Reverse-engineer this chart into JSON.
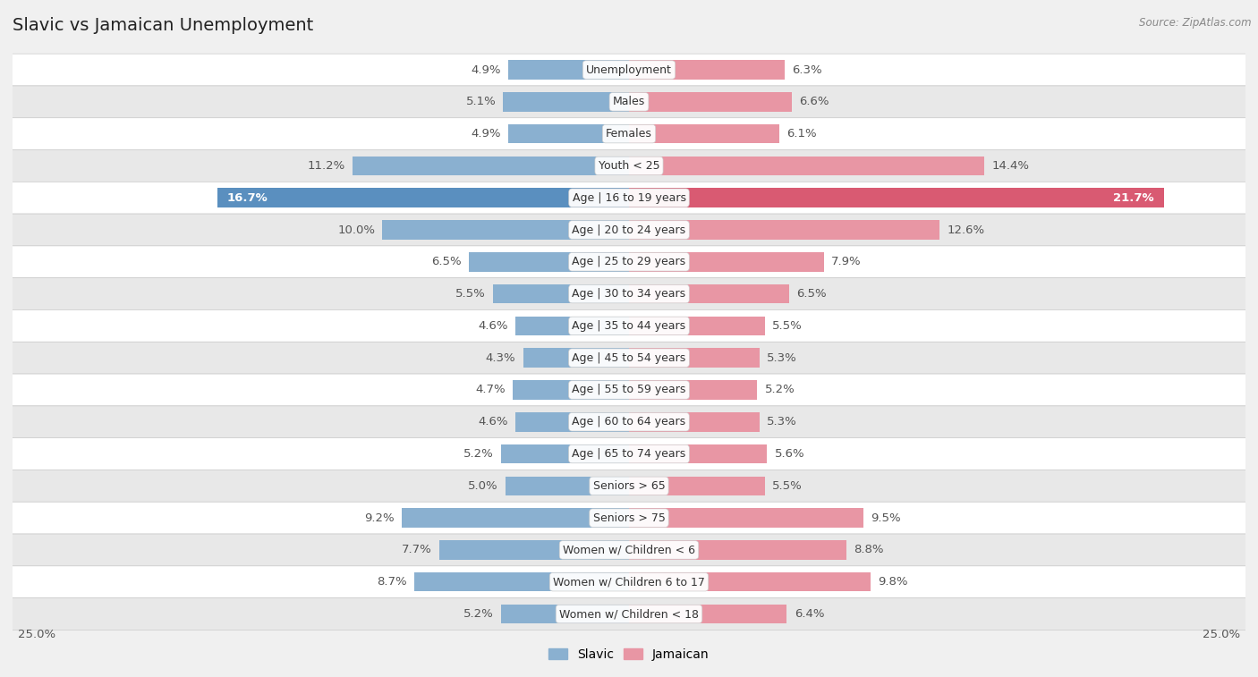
{
  "title": "Slavic vs Jamaican Unemployment",
  "source": "Source: ZipAtlas.com",
  "categories": [
    "Unemployment",
    "Males",
    "Females",
    "Youth < 25",
    "Age | 16 to 19 years",
    "Age | 20 to 24 years",
    "Age | 25 to 29 years",
    "Age | 30 to 34 years",
    "Age | 35 to 44 years",
    "Age | 45 to 54 years",
    "Age | 55 to 59 years",
    "Age | 60 to 64 years",
    "Age | 65 to 74 years",
    "Seniors > 65",
    "Seniors > 75",
    "Women w/ Children < 6",
    "Women w/ Children 6 to 17",
    "Women w/ Children < 18"
  ],
  "slavic": [
    4.9,
    5.1,
    4.9,
    11.2,
    16.7,
    10.0,
    6.5,
    5.5,
    4.6,
    4.3,
    4.7,
    4.6,
    5.2,
    5.0,
    9.2,
    7.7,
    8.7,
    5.2
  ],
  "jamaican": [
    6.3,
    6.6,
    6.1,
    14.4,
    21.7,
    12.6,
    7.9,
    6.5,
    5.5,
    5.3,
    5.2,
    5.3,
    5.6,
    5.5,
    9.5,
    8.8,
    9.8,
    6.4
  ],
  "slavic_color": "#8ab0d0",
  "jamaican_color": "#e896a4",
  "slavic_highlight_color": "#5a8fbf",
  "jamaican_highlight_color": "#d95a72",
  "highlight_row": 4,
  "bar_height": 0.6,
  "bg_color": "#f0f0f0",
  "row_color_light": "#ffffff",
  "row_color_dark": "#e8e8e8",
  "axis_limit": 25.0,
  "label_fontsize": 9.5,
  "title_fontsize": 14,
  "category_fontsize": 9,
  "legend_slavic": "Slavic",
  "legend_jamaican": "Jamaican"
}
